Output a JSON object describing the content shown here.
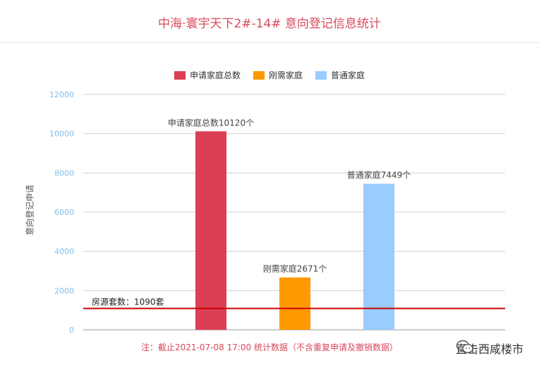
{
  "page_title": "中海·寰宇天下2#-14# 意向登记信息统计",
  "footnote": "注：截止2021-07-08 17:00 统计数据（不含重复申请及撤销数据）",
  "watermark": "直击西咸楼市",
  "chart_data": {
    "type": "bar",
    "title": "中海·寰宇天下2#-14# 意向登记信息统计",
    "ylabel": "意向登记申请",
    "xlabel": "",
    "ylim": [
      0,
      12000
    ],
    "yticks": [
      0,
      2000,
      4000,
      6000,
      8000,
      10000,
      12000
    ],
    "grid": true,
    "legend_position": "top-center",
    "series": [
      {
        "name": "申请家庭总数",
        "value": 10120,
        "color": "#db3f55",
        "data_label": "申请家庭总数10120个"
      },
      {
        "name": "刚需家庭",
        "value": 2671,
        "color": "#ff9900",
        "data_label": "刚需家庭2671个"
      },
      {
        "name": "普通家庭",
        "value": 7449,
        "color": "#99ccff",
        "data_label": "普通家庭7449个"
      }
    ],
    "reference_line": {
      "value": 1090,
      "label": "房源套数：1090套",
      "color": "#cc0000"
    }
  }
}
